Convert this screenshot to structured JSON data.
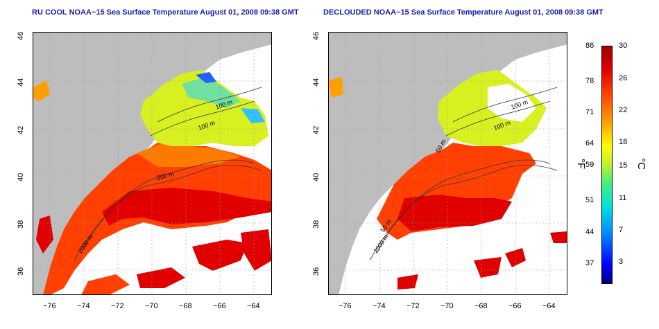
{
  "panels": [
    {
      "title": "RU COOL NOAA−15 Sea Surface Temperature August 01, 2008 09:38 GMT",
      "kind": "raw"
    },
    {
      "title": "DECLOUDED NOAA−15 Sea Surface Temperature August 01, 2008 09:38 GMT",
      "kind": "declouded"
    }
  ],
  "axes": {
    "lat_ticks": [
      "36",
      "38",
      "40",
      "42",
      "44",
      "46"
    ],
    "lon_ticks": [
      "−76",
      "−74",
      "−72",
      "−70",
      "−68",
      "−66",
      "−64"
    ]
  },
  "contour_labels": [
    "100 m",
    "100 m",
    "50 m",
    "200 m",
    "50 m",
    "2000 m"
  ],
  "colorbar": {
    "f_ticks": [
      "86",
      "78",
      "71",
      "64",
      "59",
      "51",
      "44",
      "37"
    ],
    "c_ticks": [
      "30",
      "26",
      "22",
      "18",
      "15",
      "11",
      "7",
      "3"
    ],
    "f_unit": "°F",
    "c_unit": "°C",
    "colors": [
      "#000080",
      "#0000ff",
      "#0080ff",
      "#00e0e0",
      "#40f080",
      "#c0f030",
      "#ffff00",
      "#ffa000",
      "#ff4000",
      "#e00000",
      "#a00000"
    ]
  },
  "colors": {
    "land": "#bdbdbd",
    "cloud": "#ffffff",
    "title": "#1a1ab0"
  }
}
